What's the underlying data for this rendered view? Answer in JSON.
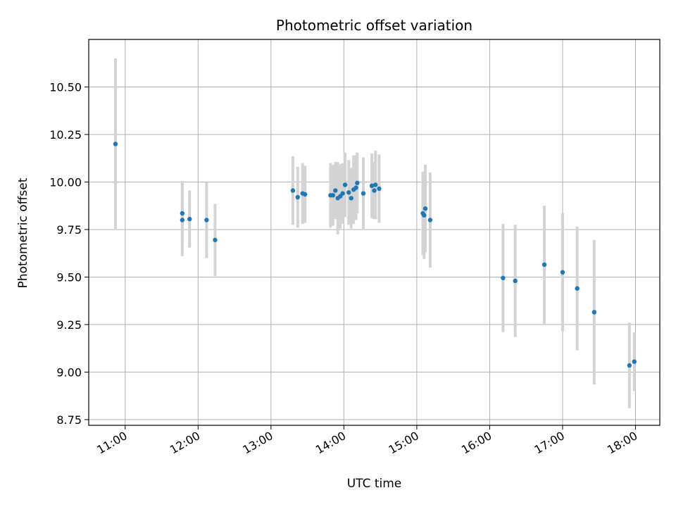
{
  "chart_data": {
    "type": "scatter",
    "title": "Photometric offset variation",
    "xlabel": "UTC time",
    "ylabel": "Photometric offset",
    "x_unit": "UTC time (HH:MM)",
    "xlim": [
      "10:30",
      "18:20"
    ],
    "ylim": [
      8.72,
      10.75
    ],
    "grid": true,
    "x_ticks": [
      "11:00",
      "12:00",
      "13:00",
      "14:00",
      "15:00",
      "16:00",
      "17:00",
      "18:00"
    ],
    "y_ticks": [
      "8.75",
      "9.00",
      "9.25",
      "9.50",
      "9.75",
      "10.00",
      "10.25",
      "10.50"
    ],
    "y_tick_values": [
      8.75,
      9.0,
      9.25,
      9.5,
      9.75,
      10.0,
      10.25,
      10.5
    ],
    "colors": {
      "point": "#1f77b4",
      "errorbar": "#d3d3d3",
      "grid": "#b0b0b0",
      "axis": "#000000"
    },
    "points": [
      {
        "x": "10:52",
        "y": 10.2,
        "yerr": 0.45
      },
      {
        "x": "11:47",
        "y": 9.8,
        "yerr": 0.19
      },
      {
        "x": "11:47",
        "y": 9.835,
        "yerr": 0.17
      },
      {
        "x": "11:53",
        "y": 9.805,
        "yerr": 0.15
      },
      {
        "x": "12:07",
        "y": 9.8,
        "yerr": 0.2
      },
      {
        "x": "12:14",
        "y": 9.695,
        "yerr": 0.19
      },
      {
        "x": "13:18",
        "y": 9.955,
        "yerr": 0.18
      },
      {
        "x": "13:22",
        "y": 9.92,
        "yerr": 0.16
      },
      {
        "x": "13:26",
        "y": 9.94,
        "yerr": 0.16
      },
      {
        "x": "13:28",
        "y": 9.935,
        "yerr": 0.15
      },
      {
        "x": "13:49",
        "y": 9.93,
        "yerr": 0.17
      },
      {
        "x": "13:51",
        "y": 9.93,
        "yerr": 0.16
      },
      {
        "x": "13:53",
        "y": 9.955,
        "yerr": 0.15
      },
      {
        "x": "13:55",
        "y": 9.915,
        "yerr": 0.19
      },
      {
        "x": "13:57",
        "y": 9.925,
        "yerr": 0.17
      },
      {
        "x": "13:59",
        "y": 9.94,
        "yerr": 0.16
      },
      {
        "x": "14:01",
        "y": 9.985,
        "yerr": 0.17
      },
      {
        "x": "14:04",
        "y": 9.945,
        "yerr": 0.17
      },
      {
        "x": "14:06",
        "y": 9.915,
        "yerr": 0.16
      },
      {
        "x": "14:08",
        "y": 9.96,
        "yerr": 0.18
      },
      {
        "x": "14:10",
        "y": 9.97,
        "yerr": 0.17
      },
      {
        "x": "14:11",
        "y": 9.995,
        "yerr": 0.16
      },
      {
        "x": "14:16",
        "y": 9.94,
        "yerr": 0.19
      },
      {
        "x": "14:23",
        "y": 9.98,
        "yerr": 0.17
      },
      {
        "x": "14:25",
        "y": 9.955,
        "yerr": 0.15
      },
      {
        "x": "14:26",
        "y": 9.985,
        "yerr": 0.18
      },
      {
        "x": "14:29",
        "y": 9.965,
        "yerr": 0.18
      },
      {
        "x": "15:05",
        "y": 9.835,
        "yerr": 0.22
      },
      {
        "x": "15:06",
        "y": 9.825,
        "yerr": 0.23
      },
      {
        "x": "15:07",
        "y": 9.86,
        "yerr": 0.23
      },
      {
        "x": "15:11",
        "y": 9.8,
        "yerr": 0.25
      },
      {
        "x": "16:11",
        "y": 9.495,
        "yerr": 0.285
      },
      {
        "x": "16:21",
        "y": 9.48,
        "yerr": 0.295
      },
      {
        "x": "16:45",
        "y": 9.565,
        "yerr": 0.31
      },
      {
        "x": "17:00",
        "y": 9.525,
        "yerr": 0.31
      },
      {
        "x": "17:12",
        "y": 9.44,
        "yerr": 0.325
      },
      {
        "x": "17:26",
        "y": 9.315,
        "yerr": 0.38
      },
      {
        "x": "17:55",
        "y": 9.035,
        "yerr": 0.225
      },
      {
        "x": "17:59",
        "y": 9.055,
        "yerr": 0.155
      }
    ]
  }
}
